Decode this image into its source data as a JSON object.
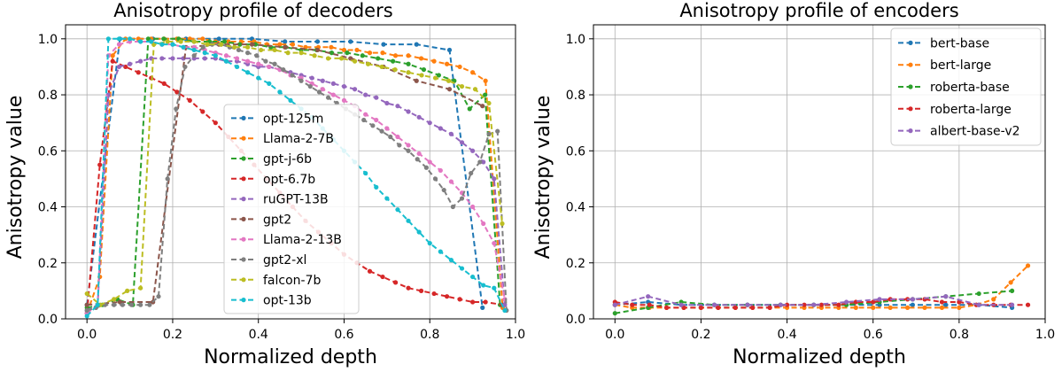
{
  "chart_data": [
    {
      "type": "line",
      "title": "Anisotropy profile of decoders",
      "xlabel": "Normalized depth",
      "ylabel": "Anisotropy value",
      "xlim": [
        -0.05,
        1.0
      ],
      "ylim": [
        0.0,
        1.05
      ],
      "xticks": [
        0.0,
        0.2,
        0.4,
        0.6,
        0.8,
        1.0
      ],
      "yticks": [
        0.0,
        0.2,
        0.4,
        0.6,
        0.8,
        1.0
      ],
      "grid": true,
      "legend": "center",
      "series": [
        {
          "name": "opt-125m",
          "color": "#1f77b4",
          "x": [
            0.0,
            0.077,
            0.154,
            0.231,
            0.308,
            0.385,
            0.462,
            0.538,
            0.615,
            0.692,
            0.769,
            0.846,
            0.923
          ],
          "y": [
            0.05,
            1.0,
            1.0,
            1.0,
            1.0,
            1.0,
            0.99,
            0.99,
            0.99,
            0.98,
            0.98,
            0.96,
            0.04
          ]
        },
        {
          "name": "Llama-2-7B",
          "color": "#ff7f0e",
          "x": [
            0.0,
            0.03,
            0.06,
            0.09,
            0.12,
            0.15,
            0.18,
            0.21,
            0.24,
            0.27,
            0.3,
            0.33,
            0.36,
            0.39,
            0.42,
            0.45,
            0.48,
            0.51,
            0.54,
            0.57,
            0.6,
            0.63,
            0.66,
            0.69,
            0.72,
            0.75,
            0.78,
            0.81,
            0.84,
            0.87,
            0.9,
            0.93,
            0.97
          ],
          "y": [
            0.02,
            0.15,
            0.94,
            1.0,
            1.0,
            1.0,
            1.0,
            1.0,
            1.0,
            1.0,
            0.99,
            0.99,
            0.99,
            0.99,
            0.98,
            0.98,
            0.98,
            0.97,
            0.97,
            0.97,
            0.96,
            0.96,
            0.95,
            0.95,
            0.94,
            0.94,
            0.93,
            0.92,
            0.91,
            0.9,
            0.88,
            0.85,
            0.04
          ]
        },
        {
          "name": "gpt-j-6b",
          "color": "#2ca02c",
          "x": [
            0.0,
            0.036,
            0.071,
            0.107,
            0.143,
            0.179,
            0.214,
            0.25,
            0.286,
            0.321,
            0.357,
            0.393,
            0.429,
            0.464,
            0.5,
            0.536,
            0.571,
            0.607,
            0.643,
            0.679,
            0.714,
            0.75,
            0.786,
            0.821,
            0.857,
            0.893,
            0.929,
            0.964
          ],
          "y": [
            0.04,
            0.05,
            0.07,
            0.05,
            1.0,
            1.0,
            1.0,
            0.99,
            0.99,
            0.99,
            0.98,
            0.98,
            0.97,
            0.97,
            0.96,
            0.96,
            0.95,
            0.95,
            0.94,
            0.93,
            0.92,
            0.91,
            0.89,
            0.87,
            0.85,
            0.75,
            0.8,
            0.05
          ]
        },
        {
          "name": "opt-6.7b",
          "color": "#d62728",
          "x": [
            0.0,
            0.03,
            0.06,
            0.09,
            0.12,
            0.15,
            0.18,
            0.21,
            0.24,
            0.27,
            0.3,
            0.33,
            0.36,
            0.39,
            0.42,
            0.45,
            0.48,
            0.51,
            0.54,
            0.57,
            0.6,
            0.63,
            0.66,
            0.69,
            0.72,
            0.75,
            0.78,
            0.81,
            0.84,
            0.87,
            0.9,
            0.93,
            0.97
          ],
          "y": [
            0.02,
            0.55,
            0.92,
            0.9,
            0.88,
            0.86,
            0.84,
            0.81,
            0.78,
            0.74,
            0.7,
            0.65,
            0.6,
            0.55,
            0.5,
            0.45,
            0.4,
            0.35,
            0.31,
            0.27,
            0.23,
            0.2,
            0.17,
            0.15,
            0.13,
            0.11,
            0.1,
            0.09,
            0.08,
            0.07,
            0.06,
            0.06,
            0.05
          ]
        },
        {
          "name": "ruGPT-13B",
          "color": "#9467bd",
          "x": [
            0.0,
            0.025,
            0.05,
            0.075,
            0.1,
            0.125,
            0.15,
            0.175,
            0.2,
            0.225,
            0.25,
            0.275,
            0.3,
            0.325,
            0.35,
            0.375,
            0.4,
            0.425,
            0.45,
            0.475,
            0.5,
            0.525,
            0.55,
            0.575,
            0.6,
            0.625,
            0.65,
            0.675,
            0.7,
            0.725,
            0.75,
            0.775,
            0.8,
            0.825,
            0.85,
            0.875,
            0.9,
            0.925,
            0.95,
            0.975
          ],
          "y": [
            0.03,
            0.05,
            0.8,
            0.9,
            0.91,
            0.92,
            0.93,
            0.93,
            0.93,
            0.93,
            0.93,
            0.93,
            0.93,
            0.92,
            0.92,
            0.91,
            0.9,
            0.9,
            0.89,
            0.88,
            0.87,
            0.86,
            0.85,
            0.84,
            0.83,
            0.82,
            0.8,
            0.79,
            0.77,
            0.76,
            0.74,
            0.72,
            0.7,
            0.68,
            0.66,
            0.63,
            0.6,
            0.56,
            0.5,
            0.05
          ]
        },
        {
          "name": "gpt2",
          "color": "#8c564b",
          "x": [
            0.0,
            0.077,
            0.154,
            0.231,
            0.308,
            0.385,
            0.462,
            0.538,
            0.615,
            0.692,
            0.769,
            0.846,
            0.923
          ],
          "y": [
            0.05,
            0.06,
            0.06,
            0.97,
            0.98,
            0.98,
            0.97,
            0.96,
            0.93,
            0.9,
            0.85,
            0.82,
            0.76
          ]
        },
        {
          "name": "Llama-2-13B",
          "color": "#e377c2",
          "x": [
            0.0,
            0.025,
            0.05,
            0.075,
            0.1,
            0.125,
            0.15,
            0.175,
            0.2,
            0.225,
            0.25,
            0.275,
            0.3,
            0.325,
            0.35,
            0.375,
            0.4,
            0.425,
            0.45,
            0.475,
            0.5,
            0.525,
            0.55,
            0.575,
            0.6,
            0.625,
            0.65,
            0.675,
            0.7,
            0.725,
            0.75,
            0.775,
            0.8,
            0.825,
            0.85,
            0.875,
            0.9,
            0.925,
            0.95,
            0.975
          ],
          "y": [
            0.02,
            0.05,
            0.94,
            0.98,
            0.99,
            0.99,
            0.99,
            0.98,
            0.98,
            0.97,
            0.97,
            0.96,
            0.95,
            0.94,
            0.93,
            0.92,
            0.91,
            0.9,
            0.89,
            0.87,
            0.86,
            0.84,
            0.82,
            0.8,
            0.78,
            0.76,
            0.73,
            0.71,
            0.68,
            0.65,
            0.62,
            0.59,
            0.56,
            0.53,
            0.49,
            0.45,
            0.4,
            0.34,
            0.27,
            0.07
          ]
        },
        {
          "name": "gpt2-xl",
          "color": "#7f7f7f",
          "x": [
            0.0,
            0.021,
            0.042,
            0.063,
            0.083,
            0.104,
            0.125,
            0.146,
            0.167,
            0.188,
            0.208,
            0.229,
            0.25,
            0.271,
            0.292,
            0.313,
            0.333,
            0.354,
            0.375,
            0.396,
            0.417,
            0.438,
            0.458,
            0.479,
            0.5,
            0.521,
            0.542,
            0.563,
            0.583,
            0.604,
            0.625,
            0.646,
            0.667,
            0.688,
            0.708,
            0.729,
            0.75,
            0.771,
            0.792,
            0.813,
            0.833,
            0.854,
            0.875,
            0.896,
            0.917,
            0.938,
            0.958,
            0.979
          ],
          "y": [
            0.03,
            0.04,
            0.05,
            0.05,
            0.05,
            0.05,
            0.05,
            0.05,
            0.08,
            0.5,
            0.75,
            0.9,
            0.94,
            0.97,
            0.98,
            0.98,
            0.97,
            0.96,
            0.95,
            0.94,
            0.92,
            0.91,
            0.89,
            0.87,
            0.85,
            0.83,
            0.81,
            0.79,
            0.77,
            0.75,
            0.73,
            0.71,
            0.69,
            0.67,
            0.65,
            0.62,
            0.6,
            0.57,
            0.54,
            0.5,
            0.46,
            0.4,
            0.43,
            0.52,
            0.56,
            0.66,
            0.67,
            0.03
          ]
        },
        {
          "name": "falcon-7b",
          "color": "#bcbd22",
          "x": [
            0.0,
            0.031,
            0.063,
            0.094,
            0.125,
            0.156,
            0.188,
            0.219,
            0.25,
            0.281,
            0.313,
            0.344,
            0.375,
            0.406,
            0.438,
            0.469,
            0.5,
            0.531,
            0.563,
            0.594,
            0.625,
            0.656,
            0.688,
            0.719,
            0.75,
            0.781,
            0.813,
            0.844,
            0.875,
            0.906,
            0.938,
            0.969
          ],
          "y": [
            0.09,
            0.05,
            0.07,
            0.1,
            0.11,
            0.98,
            0.99,
            0.99,
            0.99,
            0.98,
            0.98,
            0.97,
            0.97,
            0.96,
            0.96,
            0.95,
            0.95,
            0.94,
            0.93,
            0.93,
            0.92,
            0.91,
            0.9,
            0.89,
            0.88,
            0.87,
            0.86,
            0.85,
            0.83,
            0.82,
            0.77,
            0.34
          ]
        },
        {
          "name": "opt-13b",
          "color": "#17becf",
          "x": [
            0.0,
            0.025,
            0.05,
            0.075,
            0.1,
            0.125,
            0.15,
            0.175,
            0.2,
            0.225,
            0.25,
            0.275,
            0.3,
            0.325,
            0.35,
            0.375,
            0.4,
            0.425,
            0.45,
            0.475,
            0.5,
            0.525,
            0.55,
            0.575,
            0.6,
            0.625,
            0.65,
            0.675,
            0.7,
            0.725,
            0.75,
            0.775,
            0.8,
            0.825,
            0.85,
            0.875,
            0.9,
            0.925,
            0.95,
            0.975
          ],
          "y": [
            0.01,
            0.05,
            1.0,
            1.0,
            1.0,
            0.99,
            0.99,
            0.98,
            0.98,
            0.97,
            0.96,
            0.95,
            0.94,
            0.92,
            0.9,
            0.88,
            0.86,
            0.84,
            0.81,
            0.78,
            0.75,
            0.72,
            0.68,
            0.64,
            0.6,
            0.56,
            0.52,
            0.47,
            0.43,
            0.39,
            0.35,
            0.31,
            0.27,
            0.24,
            0.21,
            0.18,
            0.15,
            0.12,
            0.11,
            0.03
          ]
        }
      ]
    },
    {
      "type": "line",
      "title": "Anisotropy profile of encoders",
      "xlabel": "Normalized depth",
      "ylabel": "Anisotropy value",
      "xlim": [
        -0.05,
        1.0
      ],
      "ylim": [
        0.0,
        1.05
      ],
      "xticks": [
        0.0,
        0.2,
        0.4,
        0.6,
        0.8,
        1.0
      ],
      "yticks": [
        0.0,
        0.2,
        0.4,
        0.6,
        0.8,
        1.0
      ],
      "grid": true,
      "legend": "top-right",
      "series": [
        {
          "name": "bert-base",
          "color": "#1f77b4",
          "x": [
            0.0,
            0.077,
            0.154,
            0.231,
            0.308,
            0.385,
            0.462,
            0.538,
            0.615,
            0.692,
            0.769,
            0.846,
            0.923
          ],
          "y": [
            0.05,
            0.06,
            0.05,
            0.05,
            0.05,
            0.05,
            0.05,
            0.05,
            0.05,
            0.05,
            0.05,
            0.05,
            0.04
          ]
        },
        {
          "name": "bert-large",
          "color": "#ff7f0e",
          "x": [
            0.0,
            0.04,
            0.08,
            0.12,
            0.16,
            0.2,
            0.24,
            0.28,
            0.32,
            0.36,
            0.4,
            0.44,
            0.48,
            0.52,
            0.56,
            0.6,
            0.64,
            0.68,
            0.72,
            0.76,
            0.8,
            0.84,
            0.88,
            0.92,
            0.96
          ],
          "y": [
            0.05,
            0.04,
            0.04,
            0.04,
            0.04,
            0.04,
            0.04,
            0.04,
            0.04,
            0.04,
            0.04,
            0.04,
            0.04,
            0.04,
            0.04,
            0.04,
            0.04,
            0.04,
            0.04,
            0.04,
            0.04,
            0.05,
            0.07,
            0.13,
            0.19
          ]
        },
        {
          "name": "roberta-base",
          "color": "#2ca02c",
          "x": [
            0.0,
            0.077,
            0.154,
            0.231,
            0.308,
            0.385,
            0.462,
            0.538,
            0.615,
            0.692,
            0.769,
            0.846,
            0.923
          ],
          "y": [
            0.02,
            0.04,
            0.06,
            0.05,
            0.05,
            0.05,
            0.05,
            0.05,
            0.06,
            0.07,
            0.08,
            0.09,
            0.1
          ]
        },
        {
          "name": "roberta-large",
          "color": "#d62728",
          "x": [
            0.0,
            0.04,
            0.08,
            0.12,
            0.16,
            0.2,
            0.24,
            0.28,
            0.32,
            0.36,
            0.4,
            0.44,
            0.48,
            0.52,
            0.56,
            0.6,
            0.64,
            0.68,
            0.72,
            0.76,
            0.8,
            0.84,
            0.88,
            0.92,
            0.96
          ],
          "y": [
            0.06,
            0.05,
            0.05,
            0.04,
            0.04,
            0.04,
            0.04,
            0.04,
            0.04,
            0.04,
            0.05,
            0.05,
            0.05,
            0.05,
            0.06,
            0.06,
            0.07,
            0.07,
            0.07,
            0.06,
            0.06,
            0.05,
            0.05,
            0.05,
            0.05
          ]
        },
        {
          "name": "albert-base-v2",
          "color": "#9467bd",
          "x": [
            0.0,
            0.077,
            0.154,
            0.231,
            0.308,
            0.385,
            0.462,
            0.538,
            0.615,
            0.692,
            0.769,
            0.846,
            0.923
          ],
          "y": [
            0.05,
            0.08,
            0.05,
            0.05,
            0.05,
            0.05,
            0.05,
            0.06,
            0.07,
            0.07,
            0.08,
            0.05,
            0.05
          ]
        }
      ]
    }
  ]
}
